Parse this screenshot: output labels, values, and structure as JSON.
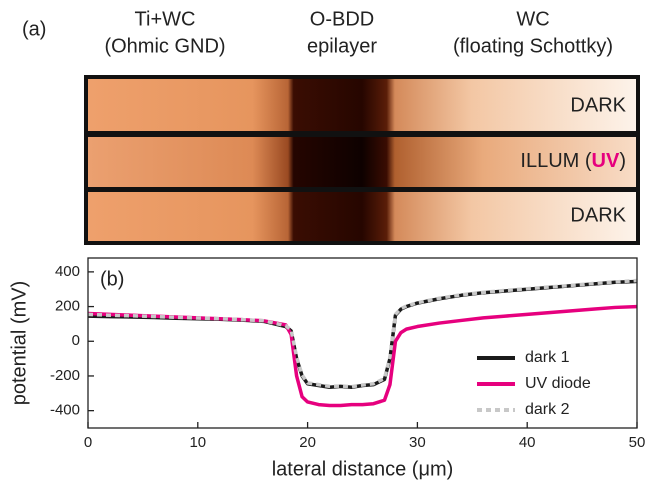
{
  "panel_a": {
    "label": "(a)",
    "columns": [
      {
        "line1": "Ti+WC",
        "line2": "(Ohmic GND)"
      },
      {
        "line1": "O-BDD",
        "line2": "epilayer"
      },
      {
        "line1": "WC",
        "line2": "(floating Schottky)"
      }
    ],
    "rows": [
      {
        "text": "DARK"
      },
      {
        "text_before": "ILLUM (",
        "highlight": "UV",
        "text_after": ")"
      },
      {
        "text": "DARK"
      }
    ]
  },
  "chart_data": {
    "type": "line",
    "panel_label": "(b)",
    "x_label": "lateral distance (μm)",
    "y_label": "potential (mV)",
    "x": [
      0,
      2,
      4,
      6,
      8,
      10,
      12,
      14,
      16,
      18,
      18.5,
      19,
      19.5,
      20,
      21,
      22,
      23,
      24,
      25,
      26,
      27,
      27.5,
      28,
      28.5,
      29,
      30,
      32,
      34,
      36,
      38,
      40,
      42,
      44,
      46,
      48,
      50
    ],
    "series": [
      {
        "name": "dark 1",
        "color": "#1a1a1a",
        "style": "solid",
        "values": [
          145,
          142,
          140,
          137,
          133,
          130,
          127,
          122,
          115,
          85,
          60,
          -100,
          -200,
          -245,
          -255,
          -265,
          -260,
          -265,
          -255,
          -250,
          -220,
          -100,
          150,
          185,
          200,
          220,
          245,
          265,
          280,
          290,
          300,
          310,
          320,
          330,
          340,
          345
        ]
      },
      {
        "name": "UV diode",
        "color": "#e6007e",
        "style": "solid",
        "values": [
          160,
          155,
          150,
          145,
          140,
          135,
          130,
          125,
          118,
          95,
          40,
          -200,
          -320,
          -350,
          -365,
          -370,
          -370,
          -365,
          -365,
          -360,
          -340,
          -250,
          0,
          50,
          70,
          85,
          105,
          120,
          135,
          145,
          155,
          165,
          175,
          185,
          195,
          200
        ]
      },
      {
        "name": "dark 2",
        "color": "#c8c8c8",
        "style": "dotted",
        "values": [
          155,
          150,
          147,
          143,
          138,
          134,
          130,
          125,
          118,
          90,
          65,
          -90,
          -195,
          -240,
          -250,
          -260,
          -258,
          -262,
          -252,
          -245,
          -215,
          -90,
          155,
          188,
          203,
          222,
          248,
          268,
          282,
          293,
          303,
          313,
          322,
          333,
          342,
          350
        ]
      }
    ],
    "xlim": [
      0,
      50
    ],
    "xticks": [
      0,
      10,
      20,
      30,
      40,
      50
    ],
    "ylim": [
      -500,
      480
    ],
    "yticks": [
      -400,
      -200,
      0,
      200,
      400
    ],
    "legend": "lower right"
  }
}
